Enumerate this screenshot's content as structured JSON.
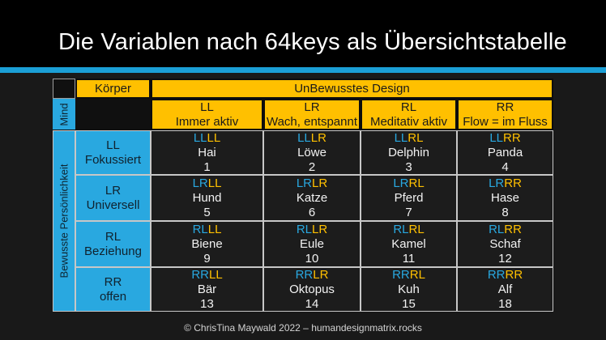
{
  "title": "Die Variablen nach 64keys als Übersichtstabelle",
  "footer": "© ChrisTina Maywald 2022 – humandesignmatrix.rocks",
  "colors": {
    "accent_cyan": "#29a8e0",
    "accent_yellow": "#ffc000",
    "divider_cyan": "#1b9fd6",
    "grid_line": "#c7c7c7"
  },
  "table": {
    "corner_header": "Körper",
    "design_header": "UnBewusstes Design",
    "mind_label": "Mind",
    "personality_label": "Bewusste Persönlichkeit",
    "columns": [
      {
        "code": "LL",
        "desc": "Immer aktiv"
      },
      {
        "code": "LR",
        "desc": "Wach, entspannt"
      },
      {
        "code": "RL",
        "desc": "Meditativ aktiv"
      },
      {
        "code": "RR",
        "desc": "Flow = im Fluss"
      }
    ],
    "rows": [
      {
        "code": "LL",
        "desc": "Fokussiert",
        "cells": [
          {
            "personality_code": "LL",
            "design_code": "LL",
            "animal": "Hai",
            "number": "1"
          },
          {
            "personality_code": "LL",
            "design_code": "LR",
            "animal": "Löwe",
            "number": "2"
          },
          {
            "personality_code": "LL",
            "design_code": "RL",
            "animal": "Delphin",
            "number": "3"
          },
          {
            "personality_code": "LL",
            "design_code": "RR",
            "animal": "Panda",
            "number": "4"
          }
        ]
      },
      {
        "code": "LR",
        "desc": "Universell",
        "cells": [
          {
            "personality_code": "LR",
            "design_code": "LL",
            "animal": "Hund",
            "number": "5"
          },
          {
            "personality_code": "LR",
            "design_code": "LR",
            "animal": "Katze",
            "number": "6"
          },
          {
            "personality_code": "LR",
            "design_code": "RL",
            "animal": "Pferd",
            "number": "7"
          },
          {
            "personality_code": "LR",
            "design_code": "RR",
            "animal": "Hase",
            "number": "8"
          }
        ]
      },
      {
        "code": "RL",
        "desc": "Beziehung",
        "cells": [
          {
            "personality_code": "RL",
            "design_code": "LL",
            "animal": "Biene",
            "number": "9"
          },
          {
            "personality_code": "RL",
            "design_code": "LR",
            "animal": "Eule",
            "number": "10"
          },
          {
            "personality_code": "RL",
            "design_code": "RL",
            "animal": "Kamel",
            "number": "11"
          },
          {
            "personality_code": "RL",
            "design_code": "RR",
            "animal": "Schaf",
            "number": "12"
          }
        ]
      },
      {
        "code": "RR",
        "desc": "offen",
        "cells": [
          {
            "personality_code": "RR",
            "design_code": "LL",
            "animal": "Bär",
            "number": "13"
          },
          {
            "personality_code": "RR",
            "design_code": "LR",
            "animal": "Oktopus",
            "number": "14"
          },
          {
            "personality_code": "RR",
            "design_code": "RL",
            "animal": "Kuh",
            "number": "15"
          },
          {
            "personality_code": "RR",
            "design_code": "RR",
            "animal": "Alf",
            "number": "18"
          }
        ]
      }
    ]
  }
}
